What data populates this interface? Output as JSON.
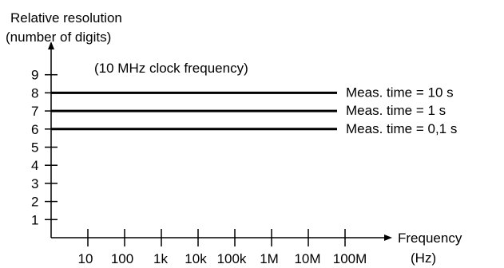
{
  "chart_data": {
    "type": "line",
    "ylabel_line1": "Relative resolution",
    "ylabel_line2": "(number of digits)",
    "xlabel_line1": "Frequency",
    "xlabel_line2": "(Hz)",
    "annotation": "(10 MHz clock frequency)",
    "y_ticks": [
      "1",
      "2",
      "3",
      "4",
      "5",
      "6",
      "7",
      "8",
      "9"
    ],
    "x_ticks": [
      "10",
      "100",
      "1k",
      "10k",
      "100k",
      "1M",
      "10M",
      "100M"
    ],
    "x_scale": "log",
    "xlim": [
      1,
      1000000000
    ],
    "ylim": [
      0,
      9.8
    ],
    "grid": false,
    "series": [
      {
        "name": "Meas. time = 10 s",
        "y": 8
      },
      {
        "name": "Meas. time = 1 s",
        "y": 7
      },
      {
        "name": "Meas. time = 0,1 s",
        "y": 6
      }
    ]
  }
}
